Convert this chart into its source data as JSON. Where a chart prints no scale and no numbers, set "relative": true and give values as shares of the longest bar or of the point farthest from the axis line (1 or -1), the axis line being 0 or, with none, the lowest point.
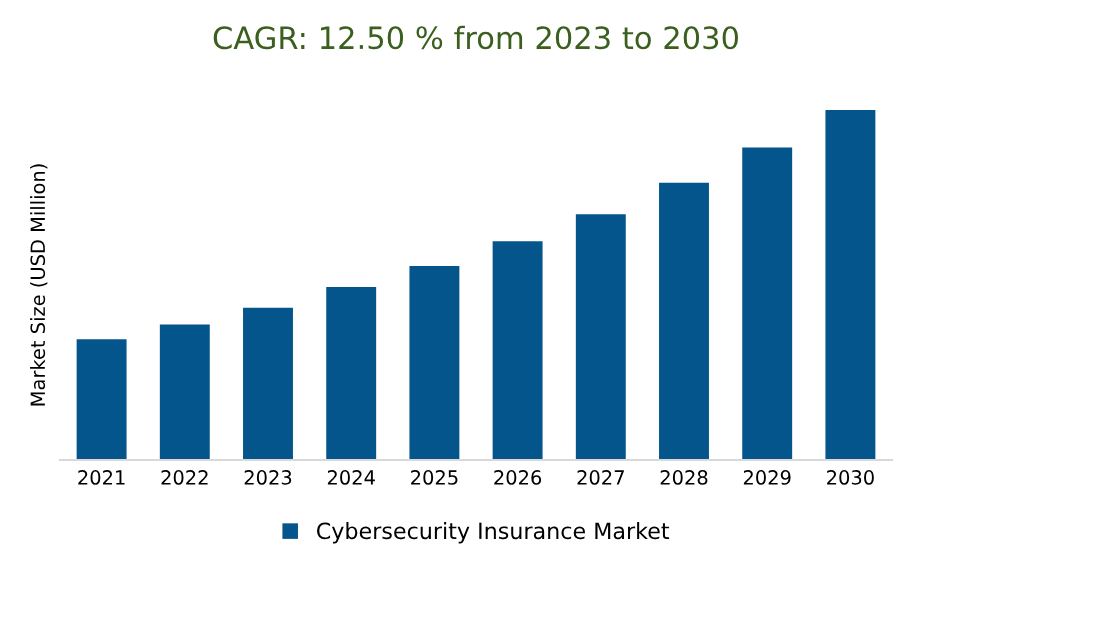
{
  "chart_data": {
    "type": "bar",
    "title": "CAGR: 12.50 % from 2023 to 2030",
    "ylabel": "Market Size (USD Million)",
    "categories": [
      "2021",
      "2022",
      "2023",
      "2024",
      "2025",
      "2026",
      "2027",
      "2028",
      "2029",
      "2030"
    ],
    "series": [
      {
        "name": "Cybersecurity Insurance Market",
        "color": "#03558c",
        "values": [
          0.345,
          0.387,
          0.435,
          0.494,
          0.554,
          0.625,
          0.702,
          0.792,
          0.893,
          1
        ]
      }
    ],
    "relative": true,
    "legend": "bottom",
    "grid": false
  }
}
